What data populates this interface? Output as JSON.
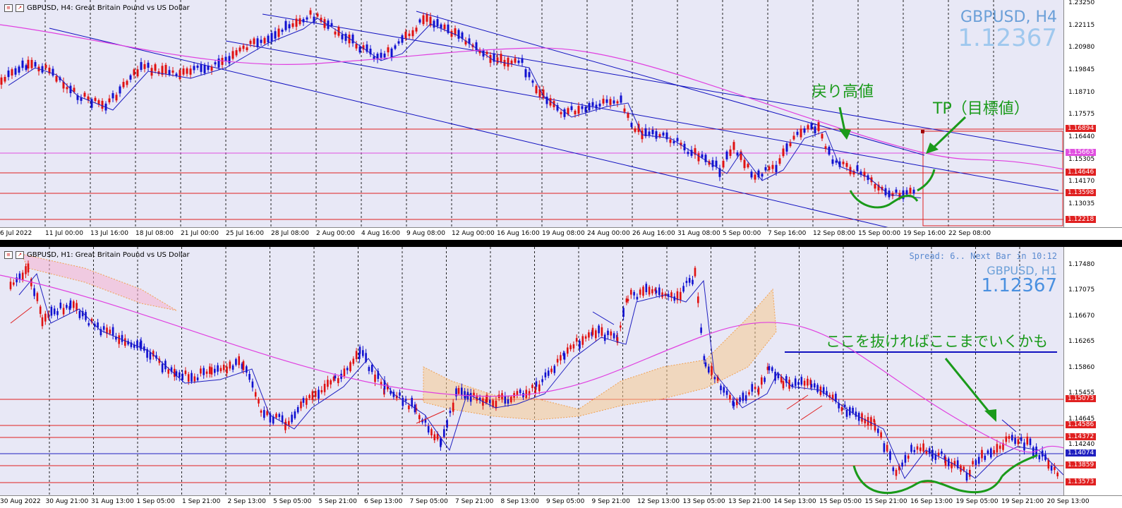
{
  "top": {
    "header": "GBPUSD, H4:  Great Britain Pound vs US Dollar",
    "symbol": "GBPUSD, H4",
    "price": "1.12367",
    "y_ticks": [
      "1.23250",
      "1.22115",
      "1.20980",
      "1.19845",
      "1.18710",
      "1.17575",
      "1.16440",
      "1.15305",
      "1.14170",
      "1.13035"
    ],
    "y_badges": [
      {
        "label": "1.16894",
        "type": "red"
      },
      {
        "label": "1.15663",
        "type": "mag"
      },
      {
        "label": "1.14646",
        "type": "red"
      },
      {
        "label": "1.13598",
        "type": "red"
      },
      {
        "label": "1.12218",
        "type": "red"
      }
    ],
    "x_ticks": [
      "6 Jul 2022",
      "11 Jul 00:00",
      "13 Jul 16:00",
      "18 Jul 08:00",
      "21 Jul 00:00",
      "25 Jul 16:00",
      "28 Jul 08:00",
      "2 Aug 00:00",
      "4 Aug 16:00",
      "9 Aug 08:00",
      "12 Aug 00:00",
      "16 Aug 16:00",
      "19 Aug 08:00",
      "24 Aug 00:00",
      "26 Aug 16:00",
      "31 Aug 08:00",
      "5 Sep 00:00",
      "7 Sep 16:00",
      "12 Sep 08:00",
      "15 Sep 00:00",
      "19 Sep 16:00",
      "22 Sep 08:00"
    ],
    "annotations": {
      "resist": "戻り高値",
      "tp": "TP（目標値）"
    }
  },
  "bottom": {
    "header": "GBPUSD, H1:  Great Britain Pound vs US Dollar",
    "symbol": "GBPUSD, H1",
    "price": "1.12367",
    "spread": "Spread: 6.. Next Bar in 10:12",
    "y_ticks": [
      "1.17480",
      "1.17075",
      "1.16670",
      "1.16265",
      "1.15860",
      "1.15455",
      "1.14645",
      "1.14240"
    ],
    "y_badges": [
      {
        "label": "1.15073",
        "type": "red"
      },
      {
        "label": "1.14586",
        "type": "red"
      },
      {
        "label": "1.14372",
        "type": "red"
      },
      {
        "label": "1.14074",
        "type": "blue"
      },
      {
        "label": "1.13859",
        "type": "red"
      },
      {
        "label": "1.13573",
        "type": "red"
      }
    ],
    "x_ticks": [
      "30 Aug 2022",
      "30 Aug 21:00",
      "31 Aug 13:00",
      "1 Sep 05:00",
      "1 Sep 21:00",
      "2 Sep 13:00",
      "5 Sep 05:00",
      "5 Sep 21:00",
      "6 Sep 13:00",
      "7 Sep 05:00",
      "7 Sep 21:00",
      "8 Sep 13:00",
      "9 Sep 05:00",
      "9 Sep 21:00",
      "12 Sep 13:00",
      "13 Sep 05:00",
      "13 Sep 21:00",
      "14 Sep 13:00",
      "15 Sep 05:00",
      "15 Sep 21:00",
      "16 Sep 13:00",
      "19 Sep 05:00",
      "19 Sep 21:00",
      "20 Sep 13:00"
    ],
    "annotations": {
      "breakout": "ここを抜ければここまでいくかも"
    }
  },
  "colors": {
    "bull": "#1010d0",
    "bear": "#e01010",
    "ma_blue": "#2020c0",
    "ma_magenta": "#e040e0",
    "annot": "#1a9a1a",
    "bg": "#e8e8f6"
  }
}
